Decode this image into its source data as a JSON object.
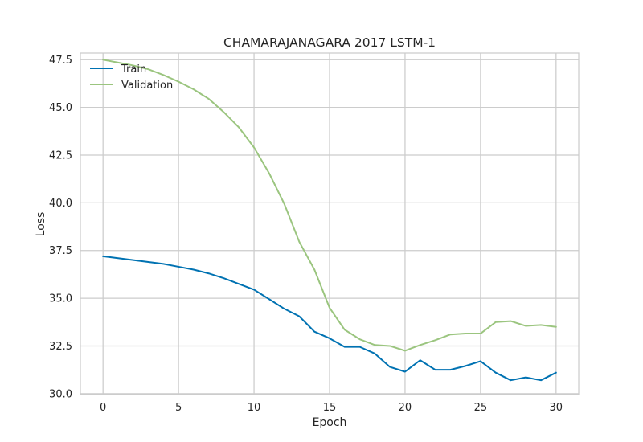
{
  "chart_data": {
    "type": "line",
    "title": "CHAMARAJANAGARA 2017 LSTM-1",
    "xlabel": "Epoch",
    "ylabel": "Loss",
    "xlim": [
      -1.5,
      31.5
    ],
    "ylim": [
      29.95,
      47.85
    ],
    "xticks": [
      0,
      5,
      10,
      15,
      20,
      25,
      30
    ],
    "yticks": [
      30.0,
      32.5,
      35.0,
      37.5,
      40.0,
      42.5,
      45.0,
      47.5
    ],
    "ytick_labels": [
      "30.0",
      "32.5",
      "35.0",
      "37.5",
      "40.0",
      "42.5",
      "45.0",
      "47.5"
    ],
    "grid": true,
    "legend_position": "top-left",
    "x": [
      0,
      1,
      2,
      3,
      4,
      5,
      6,
      7,
      8,
      9,
      10,
      11,
      12,
      13,
      14,
      15,
      16,
      17,
      18,
      19,
      20,
      21,
      22,
      23,
      24,
      25,
      26,
      27,
      28,
      29,
      30
    ],
    "series": [
      {
        "name": "Train",
        "color": "#0072b2",
        "values": [
          37.2,
          37.1,
          37.0,
          36.9,
          36.8,
          36.65,
          36.5,
          36.3,
          36.05,
          35.75,
          35.45,
          34.95,
          34.45,
          34.05,
          33.25,
          32.9,
          32.45,
          32.45,
          32.1,
          31.4,
          31.15,
          31.75,
          31.25,
          31.25,
          31.45,
          31.7,
          31.1,
          30.7,
          30.85,
          30.7,
          31.1
        ]
      },
      {
        "name": "Validation",
        "color": "#9bc57f",
        "values": [
          47.5,
          47.35,
          47.2,
          47.0,
          46.7,
          46.35,
          45.95,
          45.45,
          44.75,
          43.95,
          42.9,
          41.55,
          39.95,
          37.95,
          36.5,
          34.5,
          33.35,
          32.85,
          32.55,
          32.5,
          32.25,
          32.55,
          32.8,
          33.1,
          33.15,
          33.15,
          33.75,
          33.8,
          33.55,
          33.6,
          33.5
        ]
      }
    ]
  }
}
